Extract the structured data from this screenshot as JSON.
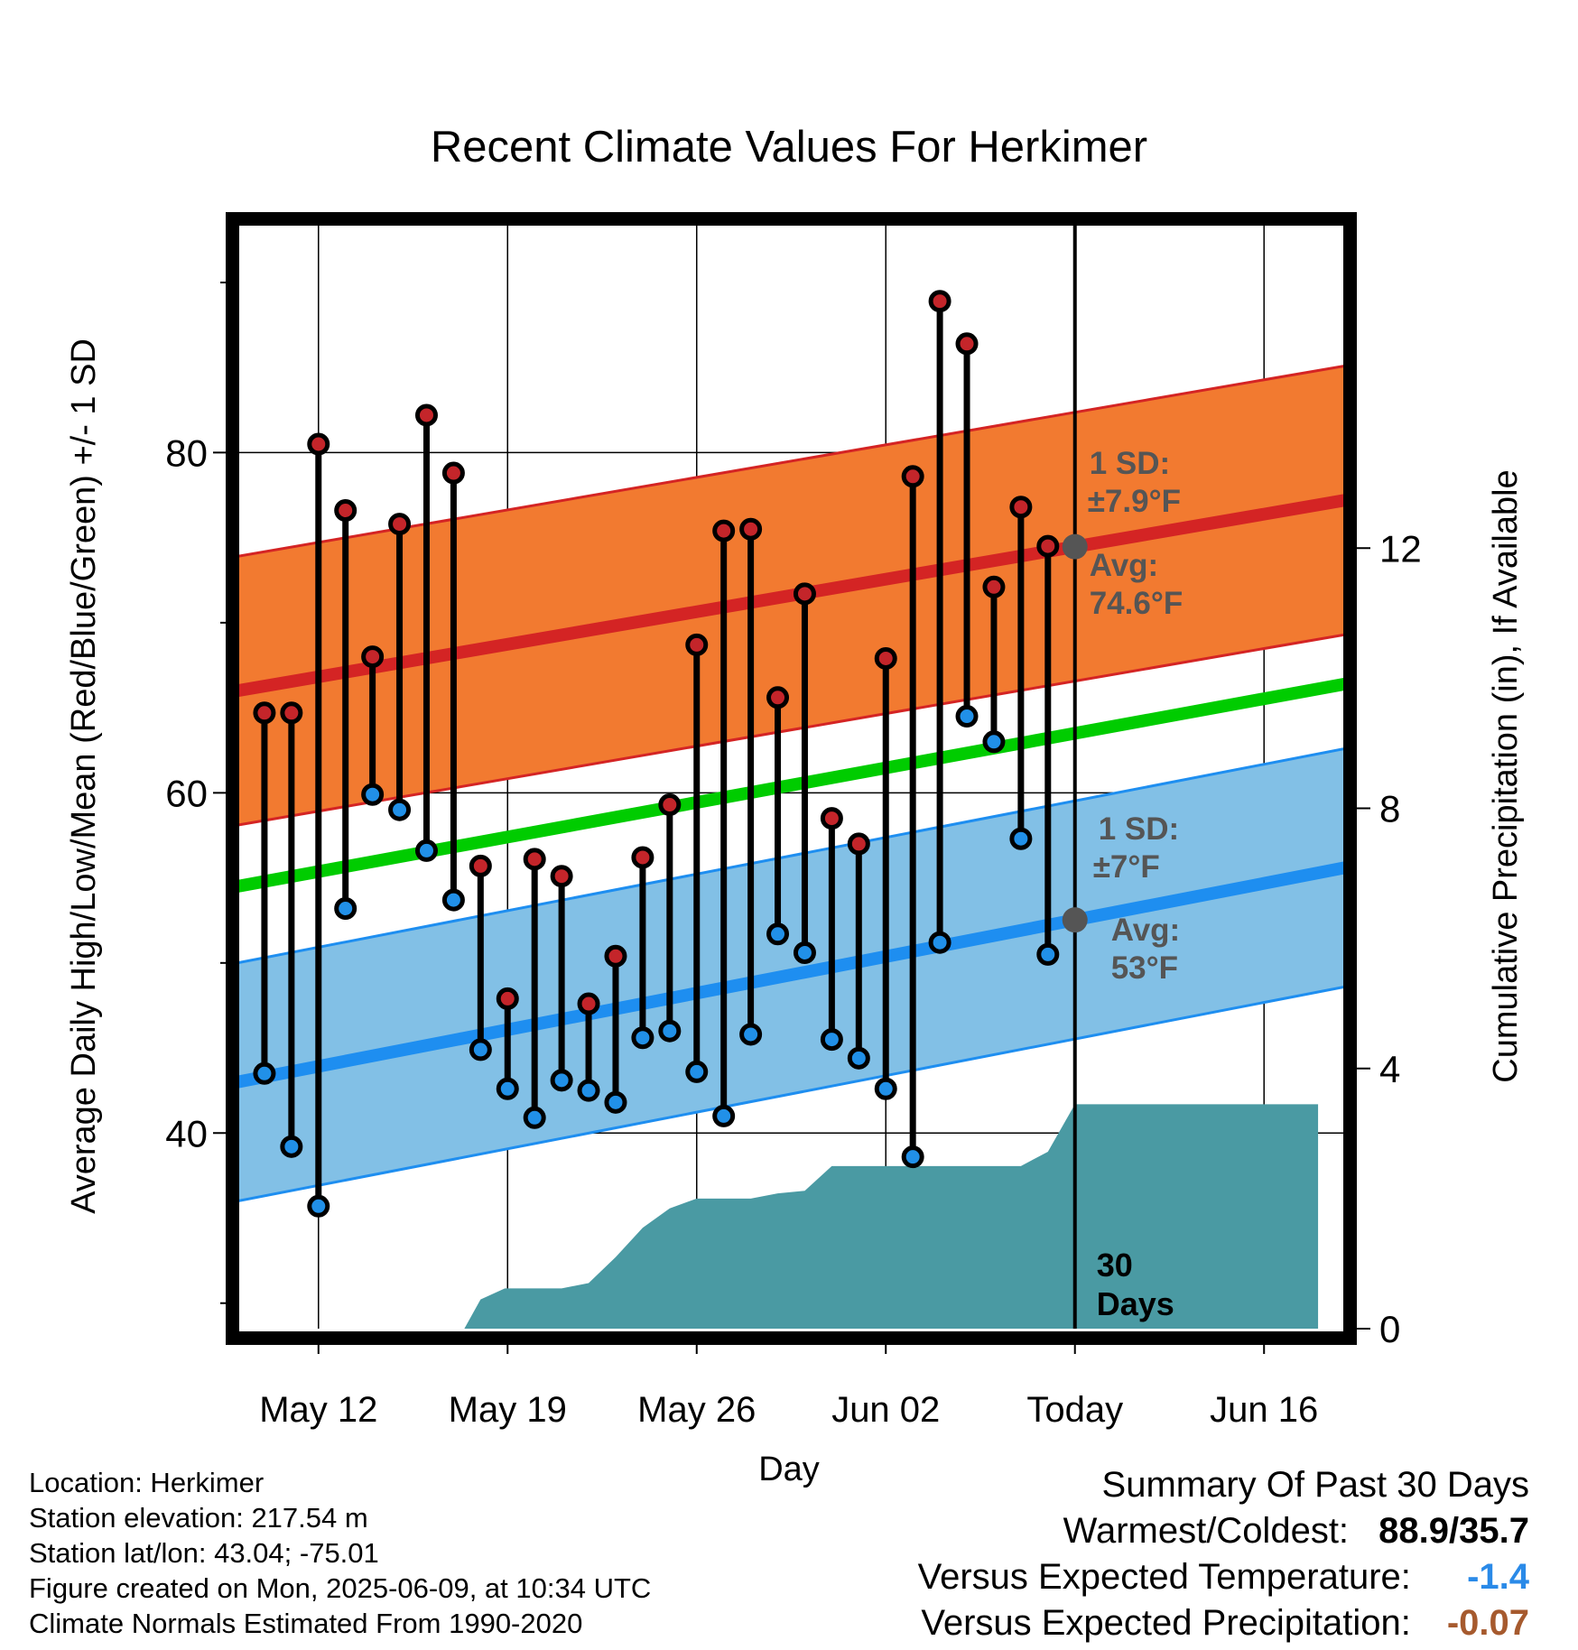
{
  "title": "Recent Climate Values For Herkimer",
  "colors": {
    "high_band": "#f27a30",
    "high_line": "#d42424",
    "low_band": "#82c0e6",
    "low_line": "#1e8ef0",
    "mean_line": "#00cc00",
    "precip": "#4a9aa3",
    "high_marker": "#c4252a",
    "low_marker": "#2190e8",
    "avg_marker": "#555555",
    "annotation": "#555555",
    "temp_anomaly": "#2a8ae8",
    "precip_anomaly": "#a65a2e"
  },
  "chart_data": {
    "type": "line",
    "title": "Recent Climate Values For Herkimer",
    "xlabel": "Day",
    "ylabel": "Average Daily High/Low/Mean (Red/Blue/Green) +/- 1 SD",
    "y2label": "Cumulative Precipitation (in), If Available",
    "x_tick_labels": [
      "May 12",
      "May 19",
      "May 26",
      "Jun 02",
      "Today",
      "Jun 16"
    ],
    "x_tick_days": [
      12,
      19,
      26,
      33,
      40,
      47
    ],
    "xlim": [
      9,
      50
    ],
    "ylim": [
      28.5,
      93.5
    ],
    "y_ticks": [
      40,
      60,
      80
    ],
    "y_minor_ticks": [
      30,
      50,
      70,
      90
    ],
    "y2lim": [
      0,
      17
    ],
    "y2_ticks": [
      0,
      4,
      8,
      12
    ],
    "grid": true,
    "today_day": 40,
    "normal_high": {
      "start": 66.0,
      "end": 77.2,
      "sd": 7.9
    },
    "normal_low": {
      "start": 43.0,
      "end": 55.6,
      "sd": 7.0
    },
    "normal_mean": {
      "start": 54.5,
      "end": 66.4
    },
    "days": [
      10,
      11,
      12,
      13,
      14,
      15,
      16,
      17,
      18,
      19,
      20,
      21,
      22,
      23,
      24,
      25,
      26,
      27,
      28,
      29,
      30,
      31,
      32,
      33,
      34,
      35,
      36,
      37,
      38,
      39
    ],
    "highs": [
      64.7,
      64.7,
      80.5,
      76.6,
      68.0,
      75.8,
      82.2,
      78.8,
      55.7,
      47.9,
      56.1,
      55.1,
      47.6,
      50.4,
      56.2,
      59.3,
      68.7,
      75.4,
      75.5,
      65.6,
      71.7,
      58.5,
      57.0,
      67.9,
      78.6,
      88.9,
      86.4,
      72.1,
      76.8,
      74.5
    ],
    "lows": [
      43.5,
      39.2,
      35.7,
      53.2,
      59.9,
      59.0,
      56.6,
      53.7,
      44.9,
      42.6,
      40.9,
      43.1,
      42.5,
      41.8,
      45.6,
      46.0,
      43.6,
      41.0,
      45.8,
      51.7,
      50.6,
      45.5,
      44.4,
      42.6,
      38.6,
      51.2,
      64.5,
      63.0,
      57.3,
      50.5
    ],
    "precip_cumulative": {
      "days": [
        13.0,
        14.0,
        15.0,
        16.0,
        17.0,
        17.4,
        18.0,
        18.9,
        19.0,
        20.0,
        21.0,
        22.0,
        23.0,
        24.0,
        25.0,
        26.0,
        27.0,
        28.0,
        29.0,
        30.0,
        31.0,
        32.0,
        33.0,
        34.0,
        35.0,
        36.0,
        37.0,
        38.0,
        39.0,
        40.0,
        49.0
      ],
      "values": [
        0,
        0,
        0,
        0,
        0,
        0,
        0.45,
        0.62,
        0.62,
        0.62,
        0.62,
        0.7,
        1.1,
        1.55,
        1.85,
        2.0,
        2.0,
        2.0,
        2.08,
        2.12,
        2.5,
        2.5,
        2.5,
        2.5,
        2.5,
        2.5,
        2.5,
        2.5,
        2.72,
        3.45,
        3.45
      ]
    },
    "annotations": {
      "high_sd": "1 SD:",
      "high_sd_value": "±7.9°F",
      "high_avg": "Avg:",
      "high_avg_value": "74.6°F",
      "low_sd": "1 SD:",
      "low_sd_value": "±7°F",
      "low_avg": "Avg:",
      "low_avg_value": "53°F",
      "days_line1": "30",
      "days_line2": "Days"
    }
  },
  "footer_left": {
    "location": "Location: Herkimer",
    "elevation": "Station elevation: 217.54 m",
    "latlon": "Station lat/lon: 43.04; -75.01",
    "created": "Figure created on Mon, 2025-06-09, at 10:34 UTC",
    "normals": "Climate Normals Estimated From 1990-2020"
  },
  "footer_right": {
    "heading": "Summary Of Past 30 Days",
    "warmest_label": "Warmest/Coldest:",
    "warmest_value": "88.9/35.7",
    "temp_label": "Versus Expected Temperature:",
    "temp_value": "-1.4",
    "precip_label": "Versus Expected Precipitation:",
    "precip_value": "-0.07"
  }
}
